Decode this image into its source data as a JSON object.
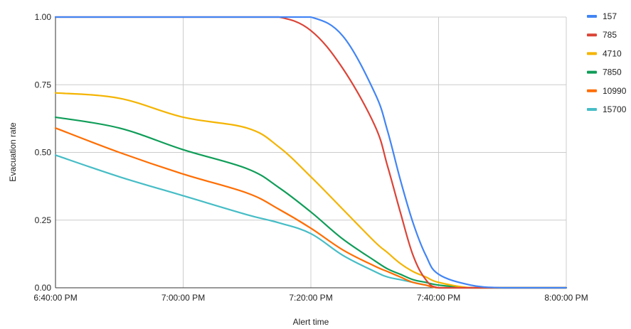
{
  "chart_data": {
    "type": "line",
    "title": "",
    "xlabel": "Alert time",
    "ylabel": "Evacuation rate",
    "x_ticks": [
      "6:40:00 PM",
      "7:00:00 PM",
      "7:20:00 PM",
      "7:40:00 PM",
      "8:00:00 PM"
    ],
    "x_tick_minutes": [
      0,
      20,
      40,
      60,
      80
    ],
    "y_ticks": [
      "0.00",
      "0.25",
      "0.50",
      "0.75",
      "1.00"
    ],
    "xlim_minutes_after_6_40_PM": [
      0,
      80
    ],
    "ylim": [
      0,
      1
    ],
    "grid": true,
    "legend_position": "right",
    "x": [
      0,
      10,
      20,
      30,
      35,
      40,
      45,
      50,
      52,
      54,
      56,
      58,
      60,
      65,
      70,
      75,
      80
    ],
    "series": [
      {
        "name": "157",
        "color": "#4285F4",
        "values": [
          1.0,
          1.0,
          1.0,
          1.0,
          1.0,
          1.0,
          0.93,
          0.72,
          0.58,
          0.4,
          0.24,
          0.12,
          0.05,
          0.01,
          0.0,
          0.0,
          0.0
        ]
      },
      {
        "name": "785",
        "color": "#DB4437",
        "values": [
          1.0,
          1.0,
          1.0,
          1.0,
          1.0,
          0.95,
          0.81,
          0.6,
          0.45,
          0.28,
          0.12,
          0.03,
          0.0,
          0.0,
          0.0,
          0.0,
          0.0
        ]
      },
      {
        "name": "4710",
        "color": "#F4B400",
        "values": [
          0.72,
          0.7,
          0.63,
          0.59,
          0.52,
          0.41,
          0.29,
          0.17,
          0.13,
          0.09,
          0.06,
          0.04,
          0.02,
          0.0,
          0.0,
          0.0,
          0.0
        ]
      },
      {
        "name": "7850",
        "color": "#0F9D58",
        "values": [
          0.63,
          0.59,
          0.51,
          0.44,
          0.37,
          0.28,
          0.18,
          0.1,
          0.07,
          0.05,
          0.03,
          0.02,
          0.01,
          0.0,
          0.0,
          0.0,
          0.0
        ]
      },
      {
        "name": "10990",
        "color": "#FF6D00",
        "values": [
          0.59,
          0.5,
          0.42,
          0.35,
          0.29,
          0.22,
          0.14,
          0.08,
          0.06,
          0.04,
          0.02,
          0.01,
          0.0,
          0.0,
          0.0,
          0.0,
          0.0
        ]
      },
      {
        "name": "15700",
        "color": "#46BDC6",
        "values": [
          0.49,
          0.41,
          0.34,
          0.27,
          0.24,
          0.2,
          0.12,
          0.06,
          0.04,
          0.03,
          0.02,
          0.01,
          0.0,
          0.0,
          0.0,
          0.0,
          0.0
        ]
      }
    ]
  }
}
